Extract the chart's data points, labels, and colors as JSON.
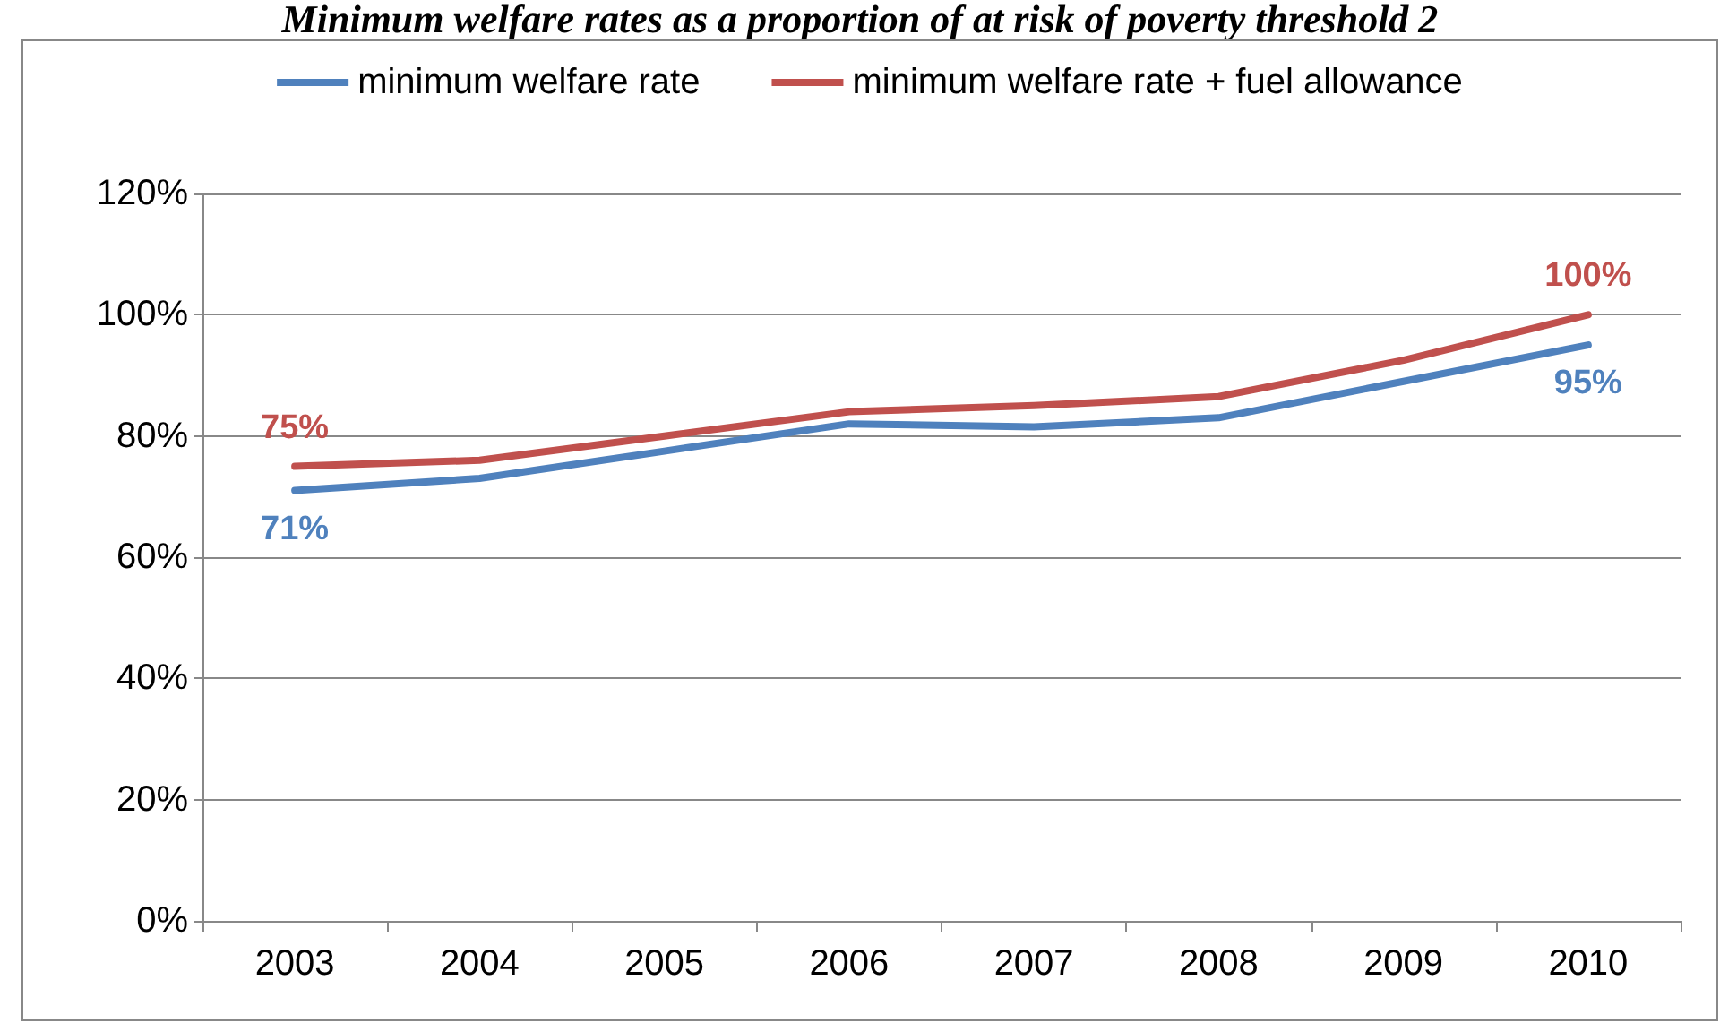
{
  "chart_data": {
    "type": "line",
    "title": "Minimum welfare rates as a proportion of at risk of poverty threshold 2",
    "categories": [
      "2003",
      "2004",
      "2005",
      "2006",
      "2007",
      "2008",
      "2009",
      "2010"
    ],
    "series": [
      {
        "name": "minimum welfare rate",
        "color": "#4f81bd",
        "values": [
          71,
          73,
          77.5,
          82,
          81.5,
          83,
          89,
          95
        ],
        "value_labels": [
          "71%",
          null,
          null,
          null,
          null,
          null,
          null,
          "95%"
        ]
      },
      {
        "name": "minimum welfare rate + fuel allowance",
        "color": "#c0504d",
        "values": [
          75,
          76,
          80,
          84,
          85,
          86.5,
          92.5,
          100
        ],
        "value_labels": [
          "75%",
          null,
          null,
          null,
          null,
          null,
          null,
          "100%"
        ]
      }
    ],
    "ylim": [
      0,
      120
    ],
    "yticks": [
      {
        "value": 0,
        "label": "0%"
      },
      {
        "value": 20,
        "label": "20%"
      },
      {
        "value": 40,
        "label": "40%"
      },
      {
        "value": 60,
        "label": "60%"
      },
      {
        "value": 80,
        "label": "80%"
      },
      {
        "value": 100,
        "label": "100%"
      },
      {
        "value": 120,
        "label": "120%"
      }
    ],
    "grid": "y",
    "legend": "top",
    "marker": "none",
    "line_style": "solid"
  }
}
